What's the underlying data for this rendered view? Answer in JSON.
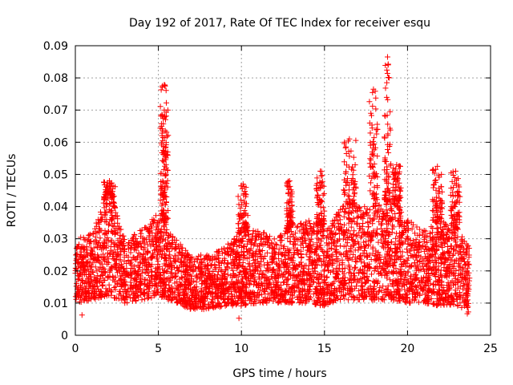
{
  "chart_data": {
    "type": "scatter",
    "title": "Day 192 of 2017, Rate Of TEC Index for receiver esqu",
    "xlabel": "GPS time / hours",
    "ylabel": "ROTI / TECUs",
    "xlim": [
      0,
      25
    ],
    "ylim": [
      0,
      0.09
    ],
    "xticks": [
      0,
      5,
      10,
      15,
      20,
      25
    ],
    "xtick_labels": [
      "0",
      "5",
      "10",
      "15",
      "20",
      "25"
    ],
    "yticks": [
      0,
      0.01,
      0.02,
      0.03,
      0.04,
      0.05,
      0.06,
      0.07,
      0.08,
      0.09
    ],
    "ytick_labels": [
      "0",
      "0.01",
      "0.02",
      "0.03",
      "0.04",
      "0.05",
      "0.06",
      "0.07",
      "0.08",
      "0.09"
    ],
    "grid": true,
    "marker": "+",
    "marker_color": "#ff0000",
    "series": [
      {
        "name": "ROTI",
        "x_range": [
          0,
          23.75
        ],
        "baseline_envelope": [
          {
            "x": 0.0,
            "low": 0.01,
            "high": 0.03
          },
          {
            "x": 1.0,
            "low": 0.011,
            "high": 0.032
          },
          {
            "x": 2.0,
            "low": 0.012,
            "high": 0.045
          },
          {
            "x": 3.0,
            "low": 0.01,
            "high": 0.03
          },
          {
            "x": 4.0,
            "low": 0.011,
            "high": 0.033
          },
          {
            "x": 5.0,
            "low": 0.012,
            "high": 0.038
          },
          {
            "x": 6.0,
            "low": 0.01,
            "high": 0.03
          },
          {
            "x": 7.0,
            "low": 0.008,
            "high": 0.025
          },
          {
            "x": 8.0,
            "low": 0.008,
            "high": 0.025
          },
          {
            "x": 9.0,
            "low": 0.009,
            "high": 0.028
          },
          {
            "x": 10.0,
            "low": 0.009,
            "high": 0.032
          },
          {
            "x": 11.0,
            "low": 0.01,
            "high": 0.033
          },
          {
            "x": 12.0,
            "low": 0.01,
            "high": 0.03
          },
          {
            "x": 13.0,
            "low": 0.01,
            "high": 0.034
          },
          {
            "x": 14.0,
            "low": 0.01,
            "high": 0.036
          },
          {
            "x": 15.0,
            "low": 0.009,
            "high": 0.033
          },
          {
            "x": 16.0,
            "low": 0.011,
            "high": 0.04
          },
          {
            "x": 17.0,
            "low": 0.011,
            "high": 0.04
          },
          {
            "x": 18.0,
            "low": 0.011,
            "high": 0.04
          },
          {
            "x": 19.0,
            "low": 0.011,
            "high": 0.042
          },
          {
            "x": 20.0,
            "low": 0.01,
            "high": 0.036
          },
          {
            "x": 21.0,
            "low": 0.01,
            "high": 0.033
          },
          {
            "x": 22.0,
            "low": 0.009,
            "high": 0.036
          },
          {
            "x": 23.0,
            "low": 0.009,
            "high": 0.033
          },
          {
            "x": 23.75,
            "low": 0.007,
            "high": 0.028
          }
        ],
        "bursts": [
          {
            "x_start": 5.1,
            "x_end": 5.6,
            "peak": 0.0778
          },
          {
            "x_start": 5.2,
            "x_end": 5.5,
            "peak": 0.07
          },
          {
            "x_start": 1.7,
            "x_end": 2.4,
            "peak": 0.048
          },
          {
            "x_start": 9.8,
            "x_end": 10.4,
            "peak": 0.047
          },
          {
            "x_start": 12.7,
            "x_end": 13.1,
            "peak": 0.048
          },
          {
            "x_start": 14.5,
            "x_end": 15.0,
            "peak": 0.051
          },
          {
            "x_start": 16.1,
            "x_end": 16.9,
            "peak": 0.061
          },
          {
            "x_start": 17.7,
            "x_end": 18.2,
            "peak": 0.0765
          },
          {
            "x_start": 18.6,
            "x_end": 19.0,
            "peak": 0.0865
          },
          {
            "x_start": 19.1,
            "x_end": 19.6,
            "peak": 0.053
          },
          {
            "x_start": 21.5,
            "x_end": 22.1,
            "peak": 0.0525
          },
          {
            "x_start": 22.6,
            "x_end": 23.2,
            "peak": 0.051
          }
        ],
        "min_outliers": [
          {
            "x": 0.4,
            "y": 0.0063
          },
          {
            "x": 9.85,
            "y": 0.0053
          },
          {
            "x": 23.6,
            "y": 0.0067
          }
        ]
      }
    ]
  }
}
